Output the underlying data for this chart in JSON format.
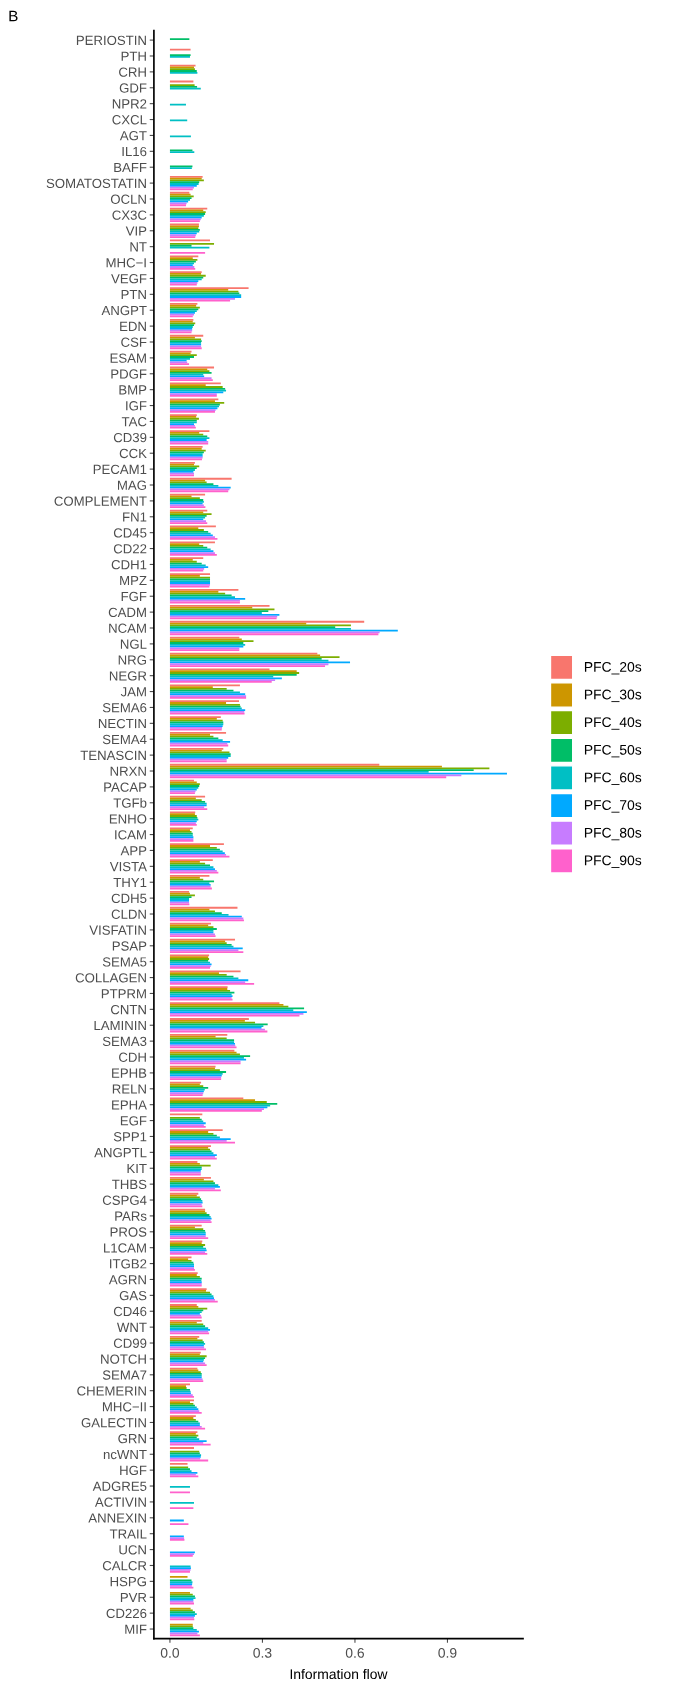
{
  "chart_data": {
    "type": "bar",
    "orientation": "horizontal",
    "xlabel": "Information flow",
    "annotations": [
      "B"
    ],
    "categories": [
      "PERIOSTIN",
      "PTH",
      "CRH",
      "GDF",
      "NPR2",
      "CXCL",
      "AGT",
      "IL16",
      "BAFF",
      "SOMATOSTATIN",
      "OCLN",
      "CX3C",
      "VIP",
      "NT",
      "MHC−I",
      "VEGF",
      "PTN",
      "ANGPT",
      "EDN",
      "CSF",
      "ESAM",
      "PDGF",
      "BMP",
      "IGF",
      "TAC",
      "CD39",
      "CCK",
      "PECAM1",
      "MAG",
      "COMPLEMENT",
      "FN1",
      "CD45",
      "CD22",
      "CDH1",
      "MPZ",
      "FGF",
      "CADM",
      "NCAM",
      "NGL",
      "NRG",
      "NEGR",
      "JAM",
      "SEMA6",
      "NECTIN",
      "SEMA4",
      "TENASCIN",
      "NRXN",
      "PACAP",
      "TGFb",
      "ENHO",
      "ICAM",
      "APP",
      "VISTA",
      "THY1",
      "CDH5",
      "CLDN",
      "VISFATIN",
      "PSAP",
      "SEMA5",
      "COLLAGEN",
      "PTPRM",
      "CNTN",
      "LAMININ",
      "SEMA3",
      "CDH",
      "EPHB",
      "RELN",
      "EPHA",
      "EGF",
      "SPP1",
      "ANGPTL",
      "KIT",
      "THBS",
      "CSPG4",
      "PARs",
      "PROS",
      "L1CAM",
      "ITGB2",
      "AGRN",
      "GAS",
      "CD46",
      "WNT",
      "CD99",
      "NOTCH",
      "SEMA7",
      "CHEMERIN",
      "MHC−II",
      "GALECTIN",
      "GRN",
      "ncWNT",
      "HGF",
      "ADGRE5",
      "ACTIVIN",
      "ANNEXIN",
      "TRAIL",
      "UCN",
      "CALCR",
      "HSPG",
      "PVR",
      "CD226",
      "MIF"
    ],
    "xlim": [
      -0.052,
      1.145
    ],
    "xticks": [
      {
        "value": 0,
        "label": "0.0"
      },
      0.3,
      0.6,
      0.9
    ],
    "grid": false,
    "legend": "right",
    "series": [
      {
        "name": "PFC_20s",
        "color": "#f8766d",
        "values": [
          null,
          0.067,
          0.083,
          0.076,
          null,
          null,
          null,
          null,
          null,
          0.106,
          0.063,
          0.121,
          0.094,
          0.13,
          0.092,
          0.103,
          0.255,
          0.089,
          0.076,
          0.108,
          0.07,
          0.143,
          0.165,
          0.157,
          0.087,
          0.128,
          0.106,
          0.081,
          0.2,
          0.114,
          0.121,
          0.149,
          0.146,
          0.108,
          0.13,
          0.222,
          0.323,
          0.63,
          0.225,
          0.478,
          0.323,
          0.227,
          0.224,
          0.165,
          0.182,
          0.173,
          0.679,
          0.078,
          0.114,
          0.082,
          0.074,
          0.175,
          0.139,
          0.128,
          0.062,
          0.219,
          0.133,
          0.211,
          0.127,
          0.229,
          0.187,
          0.355,
          0.256,
          0.186,
          0.209,
          0.148,
          0.101,
          0.238,
          0.105,
          0.171,
          0.133,
          0.089,
          0.133,
          0.092,
          0.114,
          0.103,
          0.105,
          0.07,
          0.09,
          0.119,
          0.087,
          0.103,
          0.095,
          0.1,
          0.089,
          0.065,
          0.078,
          0.084,
          0.089,
          0.078,
          0.057,
          null,
          null,
          null,
          null,
          null,
          null,
          null,
          null,
          null,
          null
        ]
      },
      {
        "name": "PFC_30s",
        "color": "#cd9600",
        "values": [
          null,
          null,
          0.078,
          null,
          null,
          null,
          null,
          null,
          null,
          0.103,
          0.067,
          0.108,
          0.094,
          null,
          0.074,
          0.101,
          0.189,
          0.085,
          0.074,
          0.081,
          0.067,
          0.121,
          0.116,
          0.146,
          0.085,
          0.095,
          0.103,
          0.078,
          0.114,
          0.07,
          0.108,
          0.092,
          0.095,
          0.074,
          0.097,
          0.157,
          0.267,
          0.442,
          0.233,
          0.487,
          0.411,
          0.139,
          0.182,
          0.152,
          0.13,
          0.168,
          0.882,
          0.087,
          0.084,
          0.081,
          0.065,
          0.13,
          0.097,
          0.097,
          0.065,
          0.128,
          0.124,
          0.179,
          0.124,
          0.159,
          0.186,
          0.368,
          0.243,
          0.148,
          0.216,
          0.146,
          0.097,
          0.276,
          null,
          0.124,
          0.124,
          0.097,
          0.11,
          0.087,
          0.114,
          0.081,
          0.103,
          0.059,
          0.087,
          0.117,
          0.092,
          0.087,
          0.089,
          0.097,
          0.092,
          0.052,
          0.065,
          0.076,
          0.084,
          null,
          null,
          null,
          null,
          null,
          null,
          null,
          null,
          0.057,
          0.065,
          0.067,
          0.074
        ]
      },
      {
        "name": "PFC_40s",
        "color": "#7cae00",
        "values": [
          null,
          null,
          0.081,
          0.08,
          null,
          null,
          null,
          null,
          null,
          0.11,
          0.077,
          0.116,
          0.092,
          0.143,
          0.089,
          0.116,
          0.222,
          0.097,
          0.082,
          0.101,
          0.087,
          0.128,
          0.171,
          0.176,
          0.094,
          0.108,
          0.116,
          0.095,
          0.119,
          0.097,
          0.135,
          0.11,
          0.108,
          0.087,
          0.13,
          0.179,
          0.339,
          0.587,
          0.271,
          0.55,
          0.419,
          0.184,
          0.227,
          0.171,
          0.141,
          0.193,
          1.036,
          0.097,
          0.103,
          0.087,
          0.07,
          0.152,
          0.114,
          0.108,
          0.081,
          0.146,
          0.141,
          0.184,
          0.127,
          0.184,
          0.195,
          0.384,
          0.276,
          0.184,
          0.227,
          0.162,
          0.108,
          0.314,
          0.097,
          0.141,
          0.13,
          0.132,
          0.141,
          0.097,
          0.119,
          0.108,
          0.114,
          0.07,
          0.097,
          0.13,
          0.121,
          0.108,
          0.106,
          0.119,
          0.1,
          0.054,
          0.076,
          0.084,
          0.092,
          0.095,
          0.059,
          null,
          null,
          null,
          null,
          null,
          null,
          null,
          0.074,
          0.074,
          0.074
        ]
      },
      {
        "name": "PFC_50s",
        "color": "#00be67",
        "values": [
          0.063,
          0.067,
          0.087,
          0.088,
          null,
          null,
          null,
          0.073,
          0.073,
          0.095,
          0.07,
          0.114,
          0.097,
          0.07,
          0.084,
          0.108,
          0.225,
          0.092,
          0.078,
          0.103,
          0.078,
          0.135,
          0.179,
          0.162,
          0.087,
          0.121,
          0.11,
          0.087,
          0.141,
          0.108,
          0.119,
          0.124,
          0.121,
          0.103,
          0.13,
          0.2,
          0.319,
          0.536,
          0.238,
          0.492,
          0.411,
          0.206,
          0.229,
          0.173,
          0.157,
          0.197,
          0.985,
          0.095,
          0.114,
          0.089,
          0.074,
          0.162,
          0.13,
          0.143,
          0.07,
          0.168,
          0.152,
          0.2,
          0.124,
          0.206,
          0.209,
          0.435,
          0.317,
          0.208,
          0.26,
          0.182,
          0.124,
          0.348,
          0.103,
          0.152,
          0.135,
          0.103,
          0.146,
          0.101,
          0.128,
          0.114,
          0.108,
          0.076,
          0.103,
          0.135,
          0.108,
          0.114,
          0.11,
          0.114,
          0.103,
          0.065,
          0.081,
          0.092,
          0.087,
          0.097,
          0.065,
          null,
          null,
          null,
          null,
          null,
          null,
          0.07,
          0.081,
          0.081,
          0.076
        ]
      },
      {
        "name": "PFC_60s",
        "color": "#00bfc4",
        "values": [
          null,
          0.065,
          0.089,
          0.1,
          0.052,
          0.056,
          0.068,
          0.079,
          0.071,
          0.093,
          0.065,
          0.11,
          0.095,
          0.128,
          0.078,
          0.103,
          0.231,
          0.087,
          0.074,
          0.101,
          0.065,
          0.108,
          0.182,
          0.159,
          0.087,
          0.128,
          0.106,
          0.081,
          0.157,
          0.11,
          0.114,
          0.132,
          0.132,
          0.116,
          0.13,
          0.211,
          0.298,
          0.587,
          0.244,
          0.514,
          0.335,
          0.227,
          0.233,
          0.173,
          0.171,
          0.197,
          0.839,
          0.092,
          0.119,
          0.092,
          0.074,
          0.171,
          0.141,
          0.128,
          0.062,
          0.19,
          0.141,
          0.206,
          0.13,
          0.222,
          0.2,
          0.4,
          0.303,
          0.208,
          0.24,
          0.171,
          0.113,
          0.325,
          0.108,
          0.162,
          0.141,
          0.103,
          0.157,
          0.105,
          0.132,
          0.116,
          0.117,
          0.078,
          0.102,
          0.141,
          0.103,
          0.124,
          0.114,
          0.11,
          0.103,
          0.067,
          0.087,
          0.097,
          0.095,
          0.101,
          0.07,
          0.065,
          0.078,
          null,
          null,
          null,
          0.067,
          0.073,
          0.083,
          0.087,
          0.087
        ]
      },
      {
        "name": "PFC_70s",
        "color": "#00a9ff",
        "values": [
          null,
          null,
          null,
          null,
          null,
          null,
          null,
          null,
          null,
          0.087,
          0.059,
          0.103,
          0.087,
          null,
          0.074,
          0.092,
          0.231,
          0.081,
          0.072,
          0.101,
          0.054,
          0.111,
          0.173,
          0.154,
          0.078,
          0.119,
          0.106,
          0.076,
          0.197,
          0.106,
          0.108,
          0.139,
          0.141,
          0.124,
          0.13,
          0.244,
          0.355,
          0.739,
          0.238,
          0.584,
          0.363,
          0.244,
          0.244,
          0.171,
          0.195,
          0.189,
          1.093,
          0.087,
          0.119,
          0.087,
          0.076,
          0.178,
          0.146,
          0.132,
          0.062,
          0.233,
          0.141,
          0.236,
          0.135,
          0.254,
          0.203,
          0.444,
          0.297,
          0.211,
          0.247,
          0.168,
          0.11,
          0.316,
          0.116,
          0.197,
          0.152,
          0.1,
          0.162,
          0.106,
          0.135,
          0.116,
          0.119,
          0.078,
          0.103,
          0.143,
          0.097,
          0.13,
          0.11,
          0.108,
          0.103,
          0.068,
          0.092,
          0.097,
          0.119,
          0.1,
          0.089,
          null,
          null,
          0.045,
          0.045,
          0.081,
          0.068,
          0.072,
          0.076,
          0.081,
          0.094
        ]
      },
      {
        "name": "PFC_80s",
        "color": "#c77cff",
        "values": [
          null,
          null,
          null,
          null,
          null,
          null,
          null,
          null,
          null,
          0.078,
          0.054,
          0.1,
          0.084,
          null,
          0.079,
          0.089,
          0.211,
          0.078,
          0.072,
          0.101,
          0.056,
          0.135,
          0.152,
          0.148,
          0.081,
          0.124,
          0.106,
          0.078,
          0.193,
          0.11,
          0.117,
          0.146,
          0.146,
          0.111,
          0.13,
          0.227,
          0.348,
          0.68,
          0.225,
          0.514,
          0.341,
          0.247,
          0.241,
          0.169,
          0.186,
          0.184,
          0.945,
          0.083,
          0.111,
          0.084,
          0.076,
          0.182,
          0.152,
          0.132,
          0.062,
          0.238,
          0.146,
          0.222,
          0.132,
          0.244,
          0.2,
          0.433,
          0.308,
          0.212,
          0.229,
          0.166,
          0.108,
          0.305,
          0.11,
          0.184,
          0.146,
          0.1,
          0.146,
          0.103,
          0.132,
          0.116,
          0.114,
          0.078,
          0.103,
          0.146,
          0.101,
          0.124,
          0.111,
          0.114,
          0.106,
          0.074,
          0.095,
          0.103,
          0.108,
          0.098,
          0.084,
          null,
          null,
          null,
          0.046,
          0.078,
          0.067,
          0.071,
          0.076,
          0.078,
          0.089
        ]
      },
      {
        "name": "PFC_90s",
        "color": "#ff61cc",
        "values": [
          null,
          null,
          null,
          null,
          null,
          null,
          null,
          null,
          null,
          0.074,
          0.052,
          0.097,
          0.082,
          0.114,
          0.082,
          0.087,
          0.195,
          0.074,
          0.07,
          0.103,
          0.062,
          0.139,
          0.152,
          0.146,
          0.084,
          0.124,
          0.104,
          0.078,
          0.189,
          0.115,
          0.121,
          0.154,
          0.152,
          0.108,
          0.128,
          0.227,
          0.346,
          0.676,
          0.225,
          0.503,
          0.33,
          0.247,
          0.242,
          0.168,
          0.189,
          0.184,
          0.896,
          0.081,
          0.121,
          0.087,
          0.076,
          0.193,
          0.157,
          0.136,
          0.063,
          0.24,
          0.148,
          0.238,
          0.13,
          0.273,
          0.203,
          0.42,
          0.316,
          0.216,
          0.229,
          0.166,
          0.106,
          0.298,
          0.116,
          0.211,
          0.152,
          0.1,
          0.165,
          0.105,
          0.135,
          0.124,
          0.121,
          0.081,
          0.103,
          0.155,
          0.103,
          0.127,
          0.117,
          0.119,
          0.108,
          0.078,
          0.103,
          0.114,
          0.132,
          0.124,
          0.092,
          0.065,
          0.076,
          0.06,
          0.047,
          0.074,
          0.065,
          0.076,
          0.078,
          0.079,
          0.097
        ]
      }
    ]
  }
}
